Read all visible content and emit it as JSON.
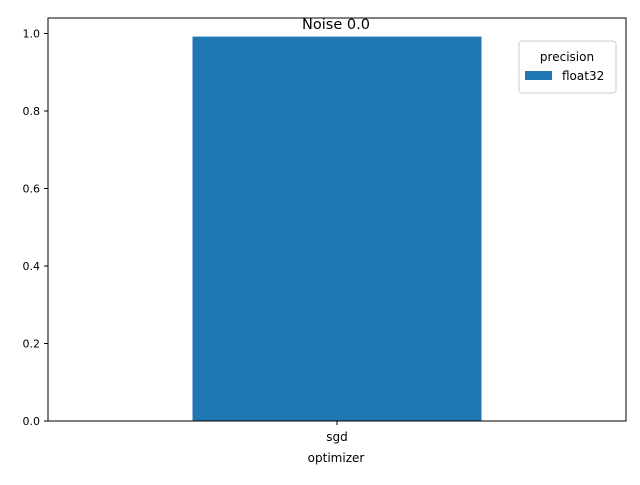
{
  "chart_data": {
    "type": "bar",
    "title": "Noise 0.0",
    "xlabel": "optimizer",
    "ylabel": "",
    "categories": [
      "sgd"
    ],
    "series": [
      {
        "name": "float32",
        "values": [
          0.992
        ],
        "color": "#1f77b4"
      }
    ],
    "ylim": [
      0,
      1.04
    ],
    "yticks": [
      0.0,
      0.2,
      0.4,
      0.6,
      0.8,
      1.0
    ],
    "ytick_labels": [
      "0.0",
      "0.2",
      "0.4",
      "0.6",
      "0.8",
      "1.0"
    ],
    "grid": false,
    "legend": {
      "title": "precision",
      "position": "top-right"
    }
  }
}
